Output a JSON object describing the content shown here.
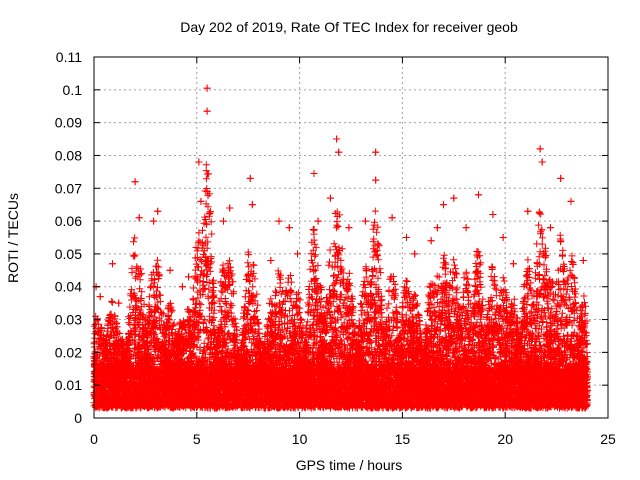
{
  "chart_data": {
    "type": "scatter",
    "title": "Day 202 of 2019, Rate Of TEC Index for receiver geob",
    "xlabel": "GPS time / hours",
    "ylabel": "ROTI / TECUs",
    "xlim": [
      0,
      25
    ],
    "ylim": [
      0,
      0.11
    ],
    "x_ticks": [
      "0",
      "5",
      "10",
      "15",
      "20",
      "25"
    ],
    "y_ticks": [
      "0",
      "0.01",
      "0.02",
      "0.03",
      "0.04",
      "0.05",
      "0.06",
      "0.07",
      "0.08",
      "0.09",
      "0.1",
      "0.11"
    ],
    "grid": true,
    "marker": "plus",
    "color": "#ff0000",
    "peaks": [
      {
        "x": 0.1,
        "y": 0.04
      },
      {
        "x": 0.3,
        "y": 0.037
      },
      {
        "x": 0.9,
        "y": 0.047
      },
      {
        "x": 1.2,
        "y": 0.035
      },
      {
        "x": 2.0,
        "y": 0.072
      },
      {
        "x": 2.2,
        "y": 0.061
      },
      {
        "x": 2.9,
        "y": 0.06
      },
      {
        "x": 3.1,
        "y": 0.063
      },
      {
        "x": 3.7,
        "y": 0.045
      },
      {
        "x": 4.3,
        "y": 0.04
      },
      {
        "x": 4.6,
        "y": 0.043
      },
      {
        "x": 5.1,
        "y": 0.078
      },
      {
        "x": 5.2,
        "y": 0.066
      },
      {
        "x": 5.5,
        "y": 0.1005
      },
      {
        "x": 5.5,
        "y": 0.0935
      },
      {
        "x": 6.3,
        "y": 0.06
      },
      {
        "x": 6.6,
        "y": 0.064
      },
      {
        "x": 7.6,
        "y": 0.073
      },
      {
        "x": 7.7,
        "y": 0.065
      },
      {
        "x": 8.6,
        "y": 0.048
      },
      {
        "x": 9.0,
        "y": 0.06
      },
      {
        "x": 9.5,
        "y": 0.058
      },
      {
        "x": 9.9,
        "y": 0.05
      },
      {
        "x": 10.7,
        "y": 0.0745
      },
      {
        "x": 10.9,
        "y": 0.06
      },
      {
        "x": 11.5,
        "y": 0.067
      },
      {
        "x": 11.8,
        "y": 0.085
      },
      {
        "x": 11.9,
        "y": 0.081
      },
      {
        "x": 12.4,
        "y": 0.058
      },
      {
        "x": 13.2,
        "y": 0.06
      },
      {
        "x": 13.7,
        "y": 0.081
      },
      {
        "x": 13.7,
        "y": 0.0725
      },
      {
        "x": 14.5,
        "y": 0.061
      },
      {
        "x": 15.2,
        "y": 0.055
      },
      {
        "x": 15.6,
        "y": 0.05
      },
      {
        "x": 16.4,
        "y": 0.054
      },
      {
        "x": 16.7,
        "y": 0.058
      },
      {
        "x": 17.0,
        "y": 0.065
      },
      {
        "x": 17.5,
        "y": 0.067
      },
      {
        "x": 18.1,
        "y": 0.058
      },
      {
        "x": 18.7,
        "y": 0.068
      },
      {
        "x": 19.4,
        "y": 0.062
      },
      {
        "x": 19.9,
        "y": 0.055
      },
      {
        "x": 20.4,
        "y": 0.047
      },
      {
        "x": 21.1,
        "y": 0.063
      },
      {
        "x": 21.7,
        "y": 0.082
      },
      {
        "x": 21.8,
        "y": 0.078
      },
      {
        "x": 22.2,
        "y": 0.058
      },
      {
        "x": 22.7,
        "y": 0.073
      },
      {
        "x": 23.2,
        "y": 0.066
      },
      {
        "x": 23.8,
        "y": 0.048
      }
    ],
    "baseline_range": [
      0.003,
      0.014
    ],
    "x_span": [
      0,
      24
    ]
  }
}
